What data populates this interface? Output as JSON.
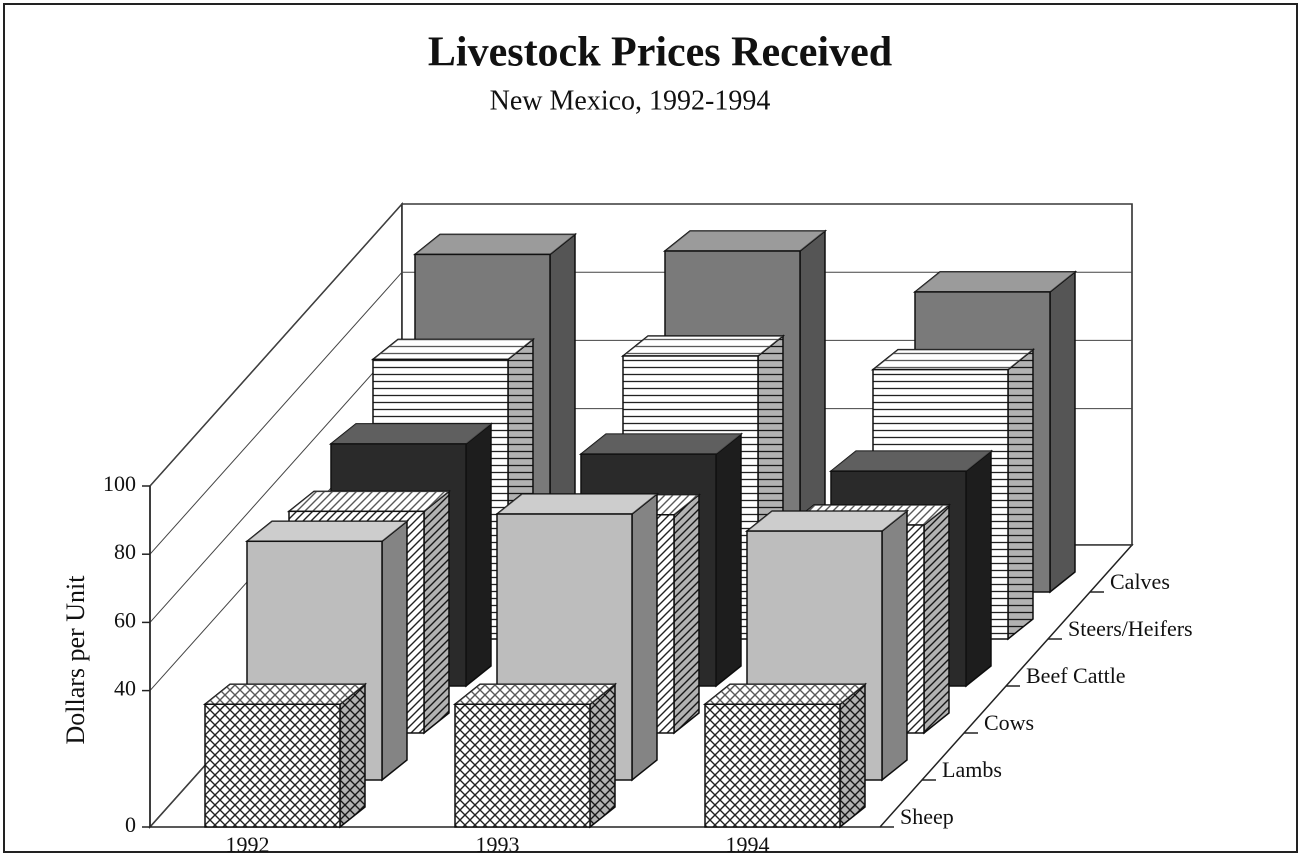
{
  "chart_data": {
    "type": "bar3d",
    "title": "Livestock Prices Received",
    "subtitle": "New Mexico, 1992-1994",
    "y_label": "Dollars per Unit",
    "categories": [
      "1992",
      "1993",
      "1994"
    ],
    "series": [
      {
        "name": "Sheep",
        "color": "#ffffff",
        "pattern": "crosshatch",
        "values": [
          36,
          36,
          36
        ]
      },
      {
        "name": "Lambs",
        "color": "#bdbdbd",
        "values": [
          70,
          78,
          73
        ]
      },
      {
        "name": "Cows",
        "color": "#ffffff",
        "pattern": "diagonal",
        "values": [
          65,
          64,
          61
        ]
      },
      {
        "name": "Beef Cattle",
        "color": "#2a2a2a",
        "values": [
          71,
          68,
          63
        ]
      },
      {
        "name": "Steers/Heifers",
        "color": "#ffffff",
        "pattern": "horizontal",
        "values": [
          82,
          83,
          79
        ]
      },
      {
        "name": "Calves",
        "color": "#7a7a7a",
        "values": [
          99,
          100,
          88
        ]
      }
    ],
    "ylim": [
      0,
      100
    ],
    "yticks": [
      0,
      40,
      60,
      80,
      100
    ],
    "grid": true
  }
}
